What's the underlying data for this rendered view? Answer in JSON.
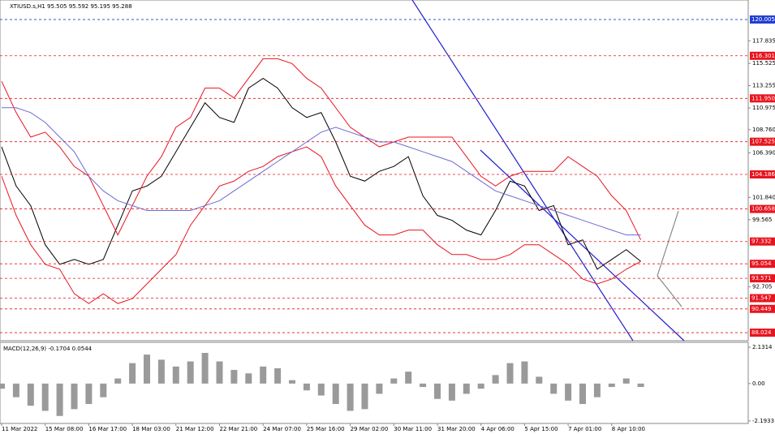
{
  "chart_data": [
    {
      "type": "line",
      "title": "XTIUSD.s,H1  95.505 95.592 95.195 95.288",
      "categories": [
        "11 Mar 2022",
        null,
        null,
        "15 Mar 08:00",
        null,
        null,
        "16 Mar 17:00",
        null,
        null,
        "18 Mar 03:00",
        null,
        null,
        "21 Mar 12:00",
        null,
        null,
        "22 Mar 21:00",
        null,
        null,
        "24 Mar 07:00",
        null,
        null,
        "25 Mar 16:00",
        null,
        null,
        "29 Mar 02:00",
        null,
        null,
        "30 Mar 11:00",
        null,
        null,
        "31 Mar 20:00",
        null,
        null,
        "4 Apr 06:00",
        null,
        null,
        "5 Apr 15:00",
        null,
        null,
        "7 Apr 01:00",
        null,
        null,
        "8 Apr 10:00",
        null,
        null
      ],
      "series": [
        {
          "color": "#000000",
          "values": [
            107,
            103,
            101,
            97,
            95,
            95.5,
            95,
            95.5,
            99,
            102.5,
            103,
            104,
            106.5,
            109,
            111.5,
            110,
            109.5,
            113,
            114,
            113,
            111,
            110,
            110.5,
            107.5,
            104,
            103.5,
            104.5,
            105,
            106,
            102,
            100,
            99.5,
            98.5,
            98,
            100.5,
            103.5,
            103,
            100.5,
            101,
            97,
            97.5,
            94.5,
            95.5,
            96.5,
            95.3
          ]
        },
        {
          "color": "#e8141e",
          "values": [
            113.7,
            110.5,
            108,
            108.5,
            107,
            105,
            104,
            101,
            98,
            101,
            104,
            106,
            109,
            110,
            113,
            113,
            112,
            114,
            116,
            116,
            115.5,
            114,
            113,
            111,
            109,
            108,
            107,
            107.5,
            108,
            108,
            108,
            108,
            106,
            104,
            103,
            104,
            104.5,
            104.5,
            104.5,
            106,
            105,
            104,
            102,
            100.5,
            97.5
          ]
        },
        {
          "color": "#e8141e",
          "values": [
            104,
            100,
            97,
            95,
            94.5,
            92,
            91,
            92,
            91,
            91.5,
            93,
            94.5,
            96,
            99,
            101,
            103,
            103.5,
            104.5,
            105,
            106,
            106.5,
            107,
            106,
            103,
            101,
            99,
            98,
            98,
            98.5,
            98.5,
            97,
            96,
            96,
            95.5,
            95.5,
            96,
            97,
            97,
            96,
            95,
            93.5,
            93,
            93.5,
            94.5,
            95.3
          ]
        },
        {
          "color": "#6b6bd6",
          "values": [
            111,
            111,
            110.5,
            109.5,
            108,
            106.5,
            104,
            102.5,
            101.5,
            101,
            100.5,
            100.5,
            100.5,
            100.5,
            101,
            101.5,
            102.5,
            103.5,
            104.5,
            105.5,
            106.5,
            107.5,
            108.5,
            109,
            108.5,
            108,
            107.5,
            107.5,
            107,
            106.5,
            106,
            105.5,
            104.5,
            103.5,
            102.5,
            102,
            101.5,
            101,
            100.5,
            100,
            99.5,
            99,
            98.5,
            98,
            98
          ]
        }
      ],
      "ylim": [
        87.2,
        122.0
      ],
      "yticks": [
        117.835,
        115.525,
        113.255,
        110.975,
        {
          "value": 108.76,
          "label": "108.760"
        },
        {
          "value": 106.39,
          "label": "106.390"
        },
        {
          "value": 101.84,
          "label": "101.840"
        },
        99.565,
        92.705
      ],
      "levels": [
        {
          "value": 120.005,
          "color": "#1f3fd0"
        },
        {
          "value": 116.301,
          "color": "#e8141e"
        },
        {
          "value": 111.95,
          "label": "111.950",
          "color": "#e8141e"
        },
        {
          "value": 107.525,
          "color": "#e8141e"
        },
        {
          "value": 104.186,
          "color": "#e8141e"
        },
        {
          "value": 100.658,
          "color": "#e8141e"
        },
        {
          "value": 97.332,
          "color": "#e8141e"
        },
        {
          "value": 95.054,
          "color": "#e8141e"
        },
        {
          "value": 93.571,
          "color": "#e8141e"
        },
        {
          "value": 91.547,
          "color": "#e8141e"
        },
        {
          "value": 90.449,
          "color": "#e8141e"
        },
        {
          "value": 88.024,
          "color": "#e8141e"
        }
      ]
    },
    {
      "type": "bar",
      "title": "MACD(12,26,9) -0.1704 0.0544",
      "color": "#9a9a9a",
      "values": [
        -0.3,
        -0.8,
        -1.3,
        -1.6,
        -1.9,
        -1.5,
        -1.2,
        -0.8,
        0.3,
        1.2,
        1.7,
        1.4,
        1.0,
        1.3,
        1.8,
        1.3,
        0.8,
        0.6,
        1.0,
        0.9,
        0.2,
        -0.4,
        -0.7,
        -1.2,
        -1.6,
        -1.5,
        -0.6,
        0.3,
        0.7,
        -0.2,
        -0.9,
        -1.0,
        -0.6,
        -0.3,
        0.5,
        1.2,
        1.3,
        0.4,
        -0.6,
        -1.0,
        -1.2,
        -0.8,
        -0.2,
        0.3,
        -0.2
      ],
      "ylim": [
        -2.34,
        2.42
      ],
      "yticks": [
        2.1314,
        {
          "value": 0,
          "label": "0.00"
        },
        -2.1933
      ]
    }
  ]
}
